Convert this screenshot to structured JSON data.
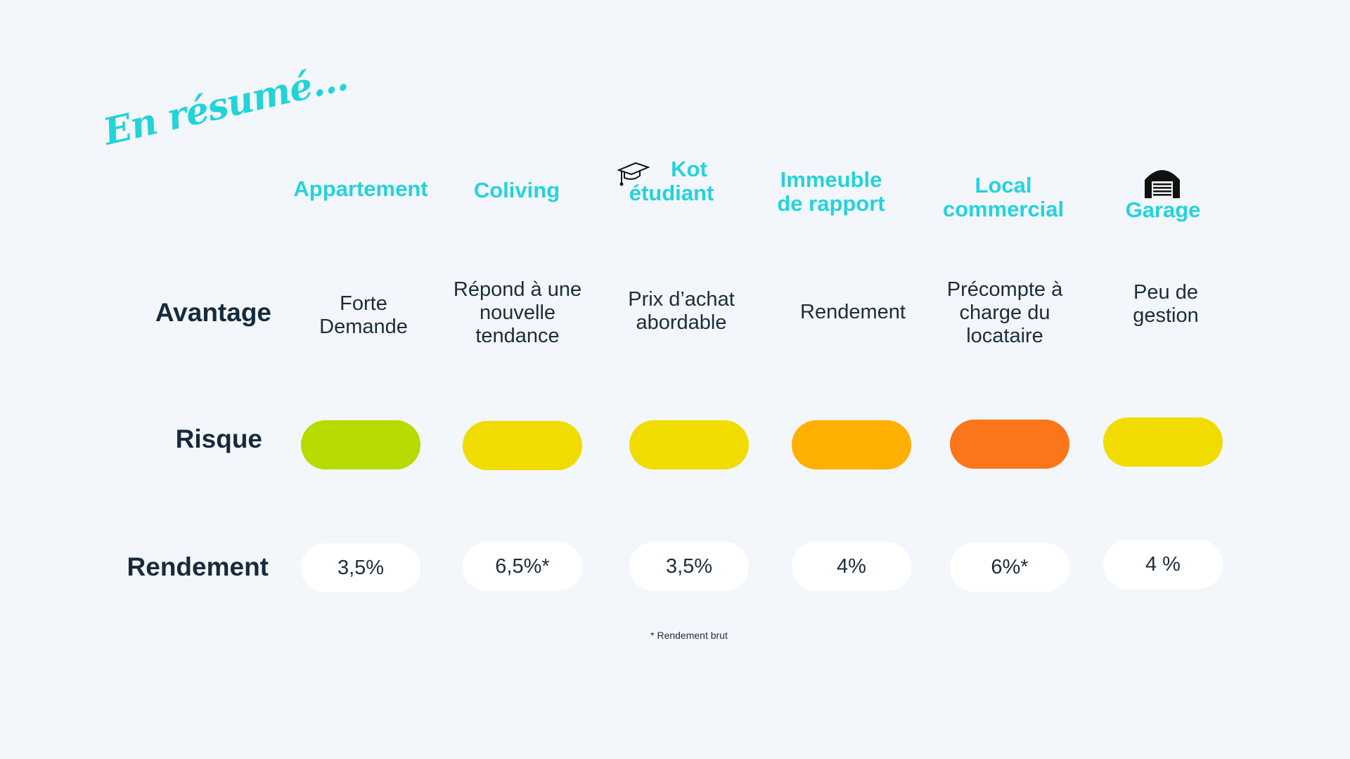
{
  "title": "En résumé...",
  "row_labels": {
    "advantage": "Avantage",
    "risk": "Risque",
    "yield": "Rendement"
  },
  "columns": [
    {
      "header": [
        "Appartement"
      ],
      "icon": "",
      "advantage": [
        "Forte",
        "Demande"
      ],
      "risk_color": "#b7da00",
      "yield": "3,5%"
    },
    {
      "header": [
        "Coliving"
      ],
      "icon": "",
      "advantage": [
        "Répond à une",
        "nouvelle",
        "tendance"
      ],
      "risk_color": "#f0dc00",
      "yield": "6,5%*"
    },
    {
      "header": [
        "Kot",
        "étudiant"
      ],
      "icon": "graduation-cap-icon",
      "advantage": [
        "Prix d’achat",
        "abordable"
      ],
      "risk_color": "#f0dc00",
      "yield": "3,5%"
    },
    {
      "header": [
        "Immeuble",
        "de rapport"
      ],
      "icon": "",
      "advantage": [
        "Rendement"
      ],
      "risk_color": "#ffb000",
      "yield": "4%"
    },
    {
      "header": [
        "Local",
        "commercial"
      ],
      "icon": "",
      "advantage": [
        "Précompte à",
        "charge du",
        "locataire"
      ],
      "risk_color": "#fb761a",
      "yield": "6%*"
    },
    {
      "header": [
        "Garage"
      ],
      "icon": "garage-icon",
      "advantage": [
        "Peu de",
        "gestion"
      ],
      "risk_color": "#f0dc00",
      "yield": "4 %"
    }
  ],
  "footnote": "* Rendement brut"
}
